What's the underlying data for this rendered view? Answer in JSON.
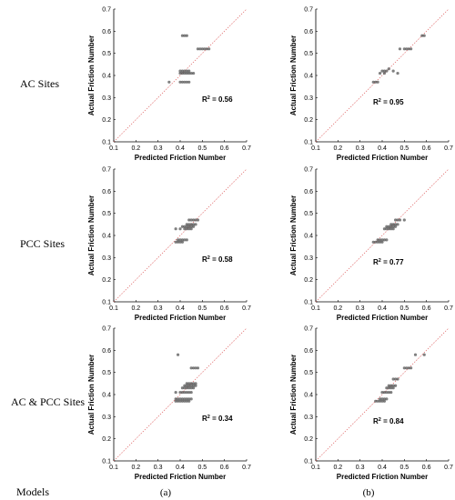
{
  "row_labels": [
    "AC Sites",
    "PCC Sites",
    "AC & PCC Sites"
  ],
  "models_label": "Models",
  "column_labels": [
    "(a)",
    "(b)"
  ],
  "colors": {
    "points": "#555555",
    "identity_line": "#e06a6a",
    "axes": "#000000"
  },
  "chart_data": [
    {
      "type": "scatter",
      "row": 0,
      "col": 0,
      "xlabel": "Predicted Friction Number",
      "ylabel": "Actual Friction Number",
      "xlim": [
        0.1,
        0.7
      ],
      "ylim": [
        0.1,
        0.7
      ],
      "ticks": [
        "0.1",
        "0.2",
        "0.3",
        "0.4",
        "0.5",
        "0.6",
        "0.7"
      ],
      "annotation": "R² = 0.56",
      "annotation_r": "R",
      "annotation_sup": "2",
      "annotation_rest": " = 0.56",
      "x": [
        0.35,
        0.4,
        0.41,
        0.42,
        0.43,
        0.44,
        0.4,
        0.41,
        0.42,
        0.43,
        0.44,
        0.45,
        0.46,
        0.4,
        0.41,
        0.42,
        0.43,
        0.44,
        0.48,
        0.49,
        0.5,
        0.51,
        0.52,
        0.53,
        0.41,
        0.42,
        0.43
      ],
      "y": [
        0.37,
        0.37,
        0.37,
        0.37,
        0.37,
        0.37,
        0.41,
        0.41,
        0.41,
        0.41,
        0.41,
        0.41,
        0.41,
        0.42,
        0.42,
        0.42,
        0.42,
        0.42,
        0.52,
        0.52,
        0.52,
        0.52,
        0.52,
        0.52,
        0.58,
        0.58,
        0.58
      ]
    },
    {
      "type": "scatter",
      "row": 0,
      "col": 1,
      "xlabel": "Predicted Friction Number",
      "ylabel": "Actual Friction Number",
      "xlim": [
        0.1,
        0.7
      ],
      "ylim": [
        0.1,
        0.7
      ],
      "ticks": [
        "0.1",
        "0.2",
        "0.3",
        "0.4",
        "0.5",
        "0.6",
        "0.7"
      ],
      "annotation": "R² = 0.95",
      "annotation_r": "R",
      "annotation_sup": "2",
      "annotation_rest": " = 0.95",
      "x": [
        0.36,
        0.37,
        0.38,
        0.39,
        0.4,
        0.41,
        0.41,
        0.42,
        0.43,
        0.45,
        0.47,
        0.48,
        0.5,
        0.51,
        0.52,
        0.53,
        0.58,
        0.59
      ],
      "y": [
        0.37,
        0.37,
        0.37,
        0.41,
        0.42,
        0.41,
        0.42,
        0.42,
        0.43,
        0.42,
        0.41,
        0.52,
        0.52,
        0.52,
        0.52,
        0.52,
        0.58,
        0.58
      ]
    },
    {
      "type": "scatter",
      "row": 1,
      "col": 0,
      "xlabel": "Predicted Friction Number",
      "ylabel": "Actual Friction Number",
      "xlim": [
        0.1,
        0.7
      ],
      "ylim": [
        0.1,
        0.7
      ],
      "ticks": [
        "0.1",
        "0.2",
        "0.3",
        "0.4",
        "0.5",
        "0.6",
        "0.7"
      ],
      "annotation": "R² = 0.58",
      "annotation_r": "R",
      "annotation_sup": "2",
      "annotation_rest": " = 0.58",
      "x": [
        0.38,
        0.39,
        0.4,
        0.41,
        0.39,
        0.4,
        0.41,
        0.42,
        0.43,
        0.38,
        0.4,
        0.42,
        0.43,
        0.44,
        0.45,
        0.41,
        0.42,
        0.43,
        0.44,
        0.45,
        0.46,
        0.43,
        0.44,
        0.45,
        0.46,
        0.47,
        0.44,
        0.45,
        0.46,
        0.47,
        0.48
      ],
      "y": [
        0.37,
        0.37,
        0.37,
        0.37,
        0.38,
        0.38,
        0.38,
        0.38,
        0.38,
        0.43,
        0.43,
        0.43,
        0.43,
        0.43,
        0.43,
        0.44,
        0.44,
        0.44,
        0.44,
        0.44,
        0.44,
        0.45,
        0.45,
        0.45,
        0.45,
        0.45,
        0.47,
        0.47,
        0.47,
        0.47,
        0.47
      ]
    },
    {
      "type": "scatter",
      "row": 1,
      "col": 1,
      "xlabel": "Predicted Friction Number",
      "ylabel": "Actual Friction Number",
      "xlim": [
        0.1,
        0.7
      ],
      "ylim": [
        0.1,
        0.7
      ],
      "ticks": [
        "0.1",
        "0.2",
        "0.3",
        "0.4",
        "0.5",
        "0.6",
        "0.7"
      ],
      "annotation": "R² = 0.77",
      "annotation_r": "R",
      "annotation_sup": "2",
      "annotation_rest": " = 0.77",
      "x": [
        0.36,
        0.37,
        0.38,
        0.39,
        0.4,
        0.38,
        0.39,
        0.4,
        0.41,
        0.42,
        0.41,
        0.42,
        0.43,
        0.44,
        0.45,
        0.42,
        0.43,
        0.44,
        0.45,
        0.46,
        0.44,
        0.45,
        0.46,
        0.47,
        0.46,
        0.47,
        0.48,
        0.5
      ],
      "y": [
        0.37,
        0.37,
        0.37,
        0.37,
        0.37,
        0.38,
        0.38,
        0.38,
        0.38,
        0.38,
        0.43,
        0.43,
        0.43,
        0.43,
        0.43,
        0.44,
        0.44,
        0.44,
        0.44,
        0.44,
        0.45,
        0.45,
        0.45,
        0.45,
        0.47,
        0.47,
        0.47,
        0.47
      ]
    },
    {
      "type": "scatter",
      "row": 2,
      "col": 0,
      "xlabel": "Predicted Friction Number",
      "ylabel": "Actual Friction Number",
      "xlim": [
        0.1,
        0.7
      ],
      "ylim": [
        0.1,
        0.7
      ],
      "ticks": [
        "0.1",
        "0.2",
        "0.3",
        "0.4",
        "0.5",
        "0.6",
        "0.7"
      ],
      "annotation": "R² = 0.34",
      "annotation_r": "R",
      "annotation_sup": "2",
      "annotation_rest": " = 0.34",
      "x": [
        0.38,
        0.39,
        0.4,
        0.41,
        0.42,
        0.43,
        0.44,
        0.38,
        0.39,
        0.4,
        0.41,
        0.42,
        0.43,
        0.44,
        0.45,
        0.38,
        0.4,
        0.41,
        0.42,
        0.43,
        0.44,
        0.45,
        0.41,
        0.42,
        0.43,
        0.44,
        0.45,
        0.46,
        0.42,
        0.43,
        0.44,
        0.45,
        0.46,
        0.47,
        0.43,
        0.44,
        0.45,
        0.46,
        0.47,
        0.45,
        0.46,
        0.47,
        0.48,
        0.39
      ],
      "y": [
        0.37,
        0.37,
        0.37,
        0.37,
        0.37,
        0.37,
        0.37,
        0.38,
        0.38,
        0.38,
        0.38,
        0.38,
        0.38,
        0.38,
        0.38,
        0.41,
        0.41,
        0.41,
        0.41,
        0.41,
        0.41,
        0.41,
        0.43,
        0.43,
        0.43,
        0.43,
        0.43,
        0.43,
        0.44,
        0.44,
        0.44,
        0.44,
        0.44,
        0.44,
        0.45,
        0.45,
        0.45,
        0.45,
        0.45,
        0.52,
        0.52,
        0.52,
        0.52,
        0.58
      ]
    },
    {
      "type": "scatter",
      "row": 2,
      "col": 1,
      "xlabel": "Predicted Friction Number",
      "ylabel": "Actual Friction Number",
      "xlim": [
        0.1,
        0.7
      ],
      "ylim": [
        0.1,
        0.7
      ],
      "ticks": [
        "0.1",
        "0.2",
        "0.3",
        "0.4",
        "0.5",
        "0.6",
        "0.7"
      ],
      "annotation": "R² = 0.84",
      "annotation_r": "R",
      "annotation_sup": "2",
      "annotation_rest": " = 0.84",
      "x": [
        0.37,
        0.38,
        0.39,
        0.4,
        0.41,
        0.39,
        0.4,
        0.41,
        0.42,
        0.4,
        0.41,
        0.42,
        0.43,
        0.44,
        0.42,
        0.43,
        0.44,
        0.45,
        0.43,
        0.44,
        0.45,
        0.46,
        0.45,
        0.46,
        0.47,
        0.5,
        0.51,
        0.52,
        0.53,
        0.55,
        0.59
      ],
      "y": [
        0.37,
        0.37,
        0.37,
        0.37,
        0.37,
        0.38,
        0.38,
        0.38,
        0.38,
        0.41,
        0.41,
        0.41,
        0.41,
        0.41,
        0.43,
        0.43,
        0.43,
        0.43,
        0.44,
        0.44,
        0.44,
        0.44,
        0.47,
        0.47,
        0.47,
        0.52,
        0.52,
        0.52,
        0.52,
        0.58,
        0.58
      ]
    }
  ]
}
